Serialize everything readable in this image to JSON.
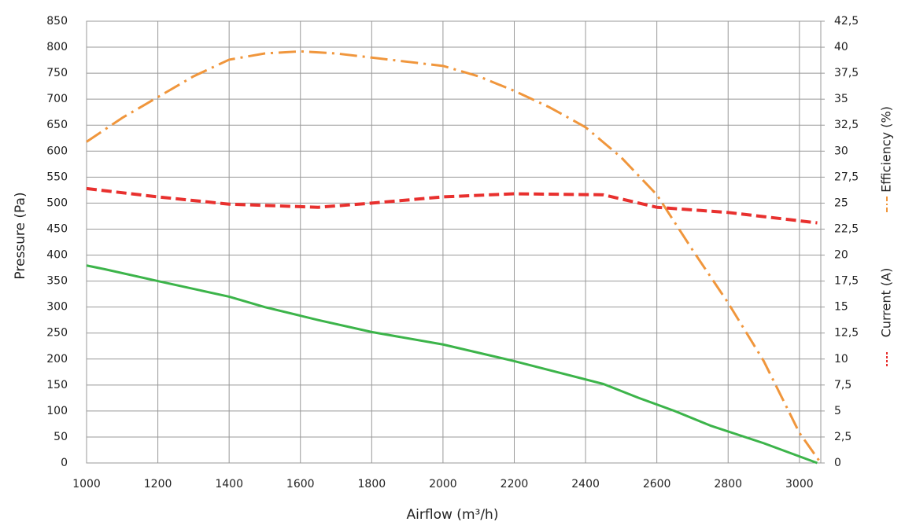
{
  "chart_data": {
    "type": "line",
    "xlabel": "Airflow (m³/h)",
    "ylabel": "Pressure (Pa)",
    "xlim": [
      1000,
      3060
    ],
    "xticks": [
      1000,
      1200,
      1400,
      1600,
      1800,
      2000,
      2200,
      2400,
      2600,
      2800,
      3000
    ],
    "ylim": [
      0,
      850
    ],
    "yticks": [
      0,
      50,
      100,
      150,
      200,
      250,
      300,
      350,
      400,
      450,
      500,
      550,
      600,
      650,
      700,
      750,
      800,
      850
    ],
    "y2lim": [
      0,
      42.5
    ],
    "y2ticks": [
      0,
      {
        "value": 2.5,
        "label": "2,5"
      },
      5,
      {
        "value": 7.5,
        "label": "7,5"
      },
      10,
      {
        "value": 12.5,
        "label": "12,5"
      },
      15,
      {
        "value": 17.5,
        "label": "17,5"
      },
      20,
      {
        "value": 22.5,
        "label": "22,5"
      },
      25,
      {
        "value": 27.5,
        "label": "27,5"
      },
      30,
      {
        "value": 32.5,
        "label": "32,5"
      },
      35,
      {
        "value": 37.5,
        "label": "37,5"
      },
      40,
      {
        "value": 42.5,
        "label": "42,5"
      }
    ],
    "grid": true,
    "series": [
      {
        "color": "#3cb44a",
        "style": "solid",
        "x": [
          1000,
          1050,
          1200,
          1400,
          1500,
          1650,
          1800,
          2000,
          2200,
          2450,
          2550,
          2650,
          2750,
          2900,
          3050
        ],
        "values": [
          380,
          373,
          350,
          320,
          300,
          275,
          252,
          228,
          196,
          152,
          125,
          100,
          72,
          38,
          0
        ]
      },
      {
        "name": "Efficiency (%)",
        "axis": "y2",
        "color": "#f0963c",
        "style": "dashdot",
        "x": [
          1000,
          1100,
          1200,
          1300,
          1400,
          1500,
          1600,
          1700,
          1800,
          1900,
          2000,
          2100,
          2200,
          2300,
          2400,
          2500,
          2600,
          2700,
          2800,
          2900,
          3000,
          3060
        ],
        "values": [
          30.9,
          33.2,
          35.2,
          37.2,
          38.8,
          39.4,
          39.6,
          39.4,
          39.0,
          38.6,
          38.2,
          37.2,
          35.8,
          34.2,
          32.3,
          29.4,
          25.8,
          20.5,
          15.4,
          9.8,
          2.9,
          0
        ]
      },
      {
        "name": "Current (A)",
        "axis": "y2",
        "color": "#e8302e",
        "style": "dashed",
        "x": [
          1000,
          1200,
          1400,
          1650,
          1800,
          2000,
          2200,
          2450,
          2600,
          2800,
          3050
        ],
        "values": [
          26.4,
          25.6,
          24.9,
          24.6,
          25.0,
          25.6,
          25.9,
          25.8,
          24.6,
          24.1,
          23.1
        ]
      }
    ]
  }
}
